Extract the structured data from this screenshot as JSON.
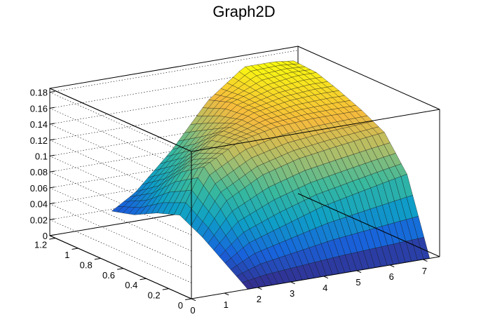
{
  "chart_data": {
    "type": "surface",
    "title": "Graph2D",
    "xlabel": "",
    "ylabel": "",
    "zlabel": "",
    "xlim": [
      0,
      7.5
    ],
    "ylim": [
      0,
      1.25
    ],
    "zlim": [
      0,
      0.185
    ],
    "x_ticks": [
      "0",
      "1",
      "2",
      "3",
      "4",
      "5",
      "6",
      "7"
    ],
    "y_ticks": [
      "0",
      "0.2",
      "0.4",
      "0.6",
      "0.8",
      "1",
      "1.2"
    ],
    "z_ticks": [
      "0",
      "0.02",
      "0.04",
      "0.06",
      "0.08",
      "0.1",
      "0.12",
      "0.14",
      "0.16",
      "0.18"
    ],
    "grid": true,
    "colormap": [
      "#352a87",
      "#1863dc",
      "#0ea0c6",
      "#38b99e",
      "#a9be6c",
      "#f6bb3c",
      "#f9fb0e"
    ],
    "surface_samples": {
      "x": [
        1.7,
        2.4,
        3.5,
        4.6,
        5.7,
        6.6,
        7.2
      ],
      "y": [
        0,
        0.2,
        0.4,
        0.6,
        0.8,
        1.0,
        1.2
      ],
      "z": [
        [
          0.0,
          0.0,
          0.0,
          0.0,
          0.0,
          0.0,
          0.0
        ],
        [
          0.02,
          0.04,
          0.055,
          0.07,
          0.08,
          0.088,
          0.093
        ],
        [
          0.04,
          0.08,
          0.105,
          0.118,
          0.125,
          0.13,
          0.133
        ],
        [
          0.055,
          0.11,
          0.135,
          0.145,
          0.148,
          0.148,
          0.148
        ],
        [
          0.045,
          0.09,
          0.13,
          0.15,
          0.158,
          0.16,
          0.16
        ],
        [
          0.03,
          0.06,
          0.105,
          0.15,
          0.165,
          0.17,
          0.17
        ],
        [
          0.022,
          0.04,
          0.085,
          0.14,
          0.175,
          0.175,
          0.172
        ]
      ]
    }
  }
}
